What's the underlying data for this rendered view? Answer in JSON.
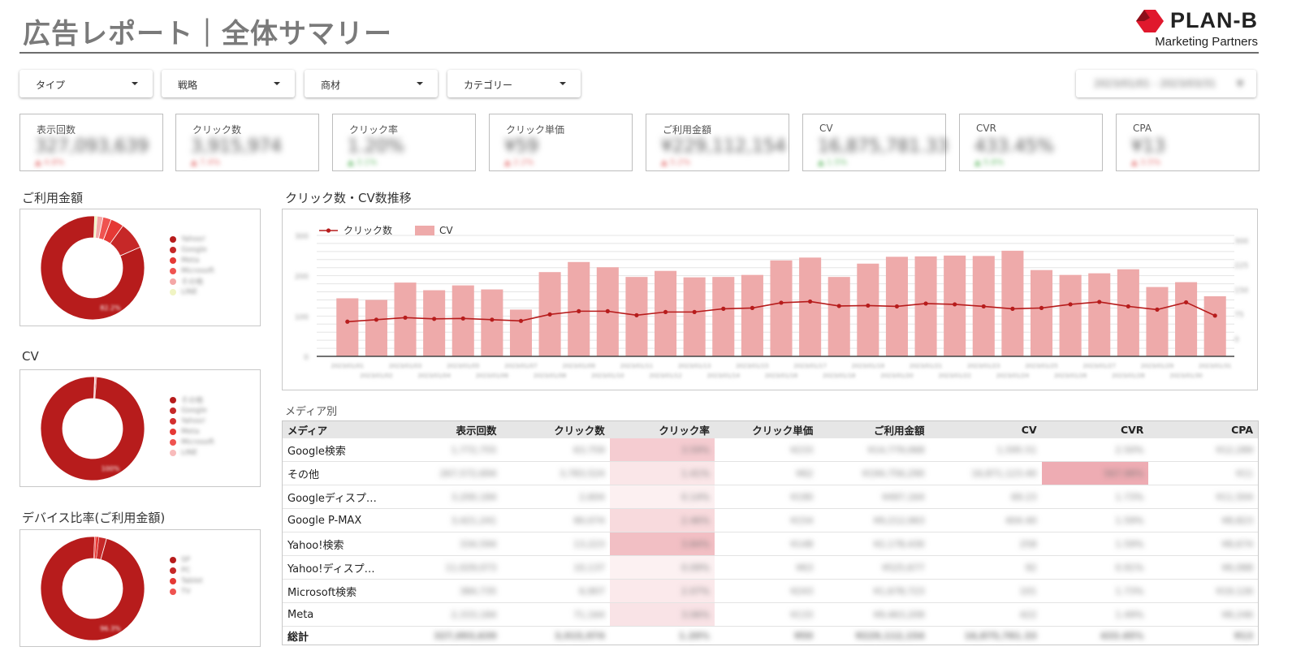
{
  "header": {
    "title": "広告レポート｜全体サマリー",
    "logo_name": "PLAN-B",
    "logo_sub": "Marketing Partners",
    "brand_color": "#e0182d"
  },
  "filters": [
    {
      "label": "タイプ"
    },
    {
      "label": "戦略"
    },
    {
      "label": "商材"
    },
    {
      "label": "カテゴリー"
    }
  ],
  "date_range": {
    "value": "2023/01/01 - 2023/03/31"
  },
  "kpis": [
    {
      "label": "表示回数",
      "value": "327,093,639",
      "delta": "▲ 4.8%",
      "delta_color": "#e57373"
    },
    {
      "label": "クリック数",
      "value": "3,915,974",
      "delta": "▲ 7.4%",
      "delta_color": "#e57373"
    },
    {
      "label": "クリック率",
      "value": "1.20%",
      "delta": "▲ 3.1%",
      "delta_color": "#66bb6a"
    },
    {
      "label": "クリック単価",
      "value": "¥59",
      "delta": "▲ 2.2%",
      "delta_color": "#e57373"
    },
    {
      "label": "ご利用金額",
      "value": "¥229,112,154",
      "delta": "▲ 5.2%",
      "delta_color": "#e57373"
    },
    {
      "label": "CV",
      "value": "16,875,781.33",
      "delta": "▲ 1.5%",
      "delta_color": "#66bb6a"
    },
    {
      "label": "CVR",
      "value": "433.45%",
      "delta": "▲ 5.8%",
      "delta_color": "#66bb6a"
    },
    {
      "label": "CPA",
      "value": "¥13",
      "delta": "▲ 3.5%",
      "delta_color": "#e57373"
    }
  ],
  "donuts": [
    {
      "title": "ご利用金額",
      "center_label": "82.2%",
      "slices": [
        {
          "name": "Yahoo!",
          "value": 82.2,
          "color": "#b71c1c"
        },
        {
          "name": "Google",
          "value": 8.5,
          "color": "#c62828"
        },
        {
          "name": "Meta",
          "value": 4.1,
          "color": "#e53935"
        },
        {
          "name": "Microsoft",
          "value": 2.6,
          "color": "#ef5350"
        },
        {
          "name": "その他",
          "value": 1.8,
          "color": "#f4a7a7"
        },
        {
          "name": "LINE",
          "value": 0.8,
          "color": "#f0f4c3"
        }
      ]
    },
    {
      "title": "CV",
      "center_label": "100%",
      "slices": [
        {
          "name": "その他",
          "value": 99.4,
          "color": "#b71c1c"
        },
        {
          "name": "Google",
          "value": 0.2,
          "color": "#c62828"
        },
        {
          "name": "Yahoo!",
          "value": 0.15,
          "color": "#d32f2f"
        },
        {
          "name": "Meta",
          "value": 0.1,
          "color": "#e53935"
        },
        {
          "name": "Microsoft",
          "value": 0.1,
          "color": "#ef5350"
        },
        {
          "name": "LINE",
          "value": 0.05,
          "color": "#f8bbbb"
        }
      ]
    },
    {
      "title": "デバイス比率(ご利用金額)",
      "center_label": "96.3%",
      "slices": [
        {
          "name": "SP",
          "value": 96.3,
          "color": "#b71c1c"
        },
        {
          "name": "PC",
          "value": 2.4,
          "color": "#c62828"
        },
        {
          "name": "Tablet",
          "value": 0.9,
          "color": "#e53935"
        },
        {
          "name": "TV",
          "value": 0.4,
          "color": "#ef5350"
        }
      ]
    }
  ],
  "trend": {
    "title": "クリック数・CV数推移",
    "legend_line": "クリック数",
    "legend_bar": "CV",
    "line_color": "#b71c1c",
    "bar_color": "#eeaaaa"
  },
  "chart_data": {
    "type": "bar",
    "title": "クリック数・CV数推移",
    "series": [
      {
        "name": "CV",
        "type": "bar",
        "values": [
          144,
          140,
          183,
          164,
          176,
          166,
          116,
          209,
          234,
          221,
          197,
          212,
          196,
          197,
          202,
          238,
          245,
          197,
          230,
          247,
          248,
          250,
          249,
          262,
          214,
          202,
          206,
          216,
          172,
          184,
          149
        ]
      },
      {
        "name": "クリック数",
        "type": "line",
        "values": [
          86,
          91,
          96,
          93,
          94,
          91,
          88,
          104,
          112,
          112,
          102,
          110,
          110,
          118,
          120,
          133,
          136,
          125,
          126,
          124,
          131,
          129,
          124,
          118,
          120,
          129,
          135,
          124,
          116,
          134,
          101
        ]
      }
    ],
    "ylim_left": [
      0,
      300
    ],
    "ylim_right": [
      0,
      300
    ],
    "grid": true,
    "legend": "top-left"
  },
  "media_table": {
    "title": "メディア別",
    "columns": [
      "メディア",
      "表示回数",
      "クリック数",
      "クリック率",
      "クリック単価",
      "ご利用金額",
      "CV",
      "CVR",
      "CPA"
    ],
    "rows": [
      {
        "name": "Google検索",
        "cells": [
          "1,772,755",
          "63,759",
          "3.59%",
          "¥233",
          "¥14,779,068",
          "1,595.51",
          "2.50%",
          "¥12,289"
        ],
        "ctr_level": 0.55,
        "cvr_level": 0.0
      },
      {
        "name": "その他",
        "cells": [
          "267,572,694",
          "3,783,524",
          "1.41%",
          "¥62",
          "¥194,756,290",
          "16,871,123.40",
          "567.98%",
          "¥11"
        ],
        "ctr_level": 0.2,
        "cvr_level": 1.0
      },
      {
        "name": "Googleディスプ…",
        "cells": [
          "3,200,184",
          "2,604",
          "0.14%",
          "¥190",
          "¥497,164",
          "69.23",
          "1.73%",
          "¥11,504"
        ],
        "ctr_level": 0.05,
        "cvr_level": 0.0
      },
      {
        "name": "Google P-MAX",
        "cells": [
          "3,421,241",
          "90,074",
          "2.46%",
          "¥154",
          "¥9,212,063",
          "404.40",
          "1.59%",
          "¥8,823"
        ],
        "ctr_level": 0.35,
        "cvr_level": 0.0
      },
      {
        "name": "Yahoo!検索",
        "cells": [
          "334,594",
          "13,223",
          "3.84%",
          "¥148",
          "¥2,178,430",
          "258",
          "1.59%",
          "¥8,674"
        ],
        "ctr_level": 0.75,
        "cvr_level": 0.0
      },
      {
        "name": "Yahoo!ディスプ…",
        "cells": [
          "11,029,073",
          "10,137",
          "0.09%",
          "¥63",
          "¥525,677",
          "92",
          "0.91%",
          "¥6,088"
        ],
        "ctr_level": 0.03,
        "cvr_level": 0.0
      },
      {
        "name": "Microsoft検索",
        "cells": [
          "384,735",
          "6,907",
          "2.07%",
          "¥243",
          "¥1,678,723",
          "101",
          "1.73%",
          "¥19,126"
        ],
        "ctr_level": 0.15,
        "cvr_level": 0.0
      },
      {
        "name": "Meta",
        "cells": [
          "2,333,184",
          "71,164",
          "3.06%",
          "¥133",
          "¥9,463,209",
          "422",
          "1.49%",
          "¥8,246"
        ],
        "ctr_level": 0.22,
        "cvr_level": 0.0
      }
    ],
    "total": {
      "name": "総計",
      "cells": [
        "327,093,639",
        "3,915,974",
        "1.20%",
        "¥59",
        "¥229,112,154",
        "16,875,781.33",
        "433.45%",
        "¥13"
      ]
    }
  }
}
